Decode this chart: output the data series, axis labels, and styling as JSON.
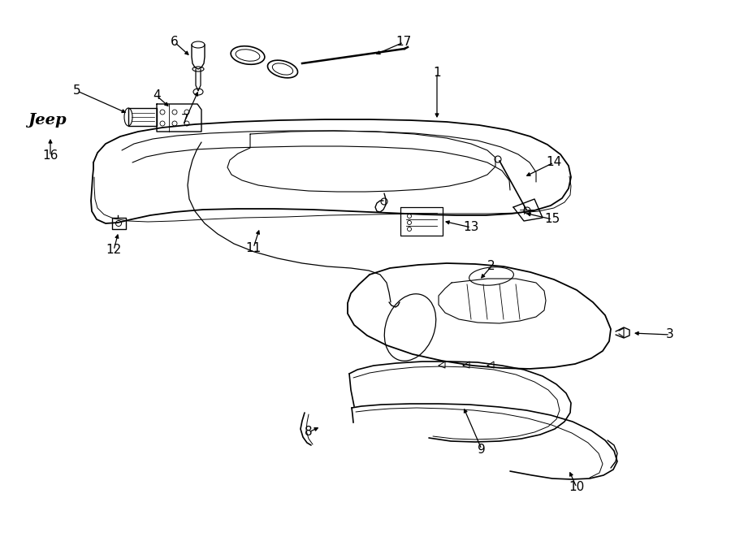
{
  "background_color": "#ffffff",
  "line_color": "#000000",
  "lw_main": 1.3,
  "lw_detail": 0.8,
  "lw_thin": 0.6,
  "label_fontsize": 11,
  "arrow_scale": 7
}
